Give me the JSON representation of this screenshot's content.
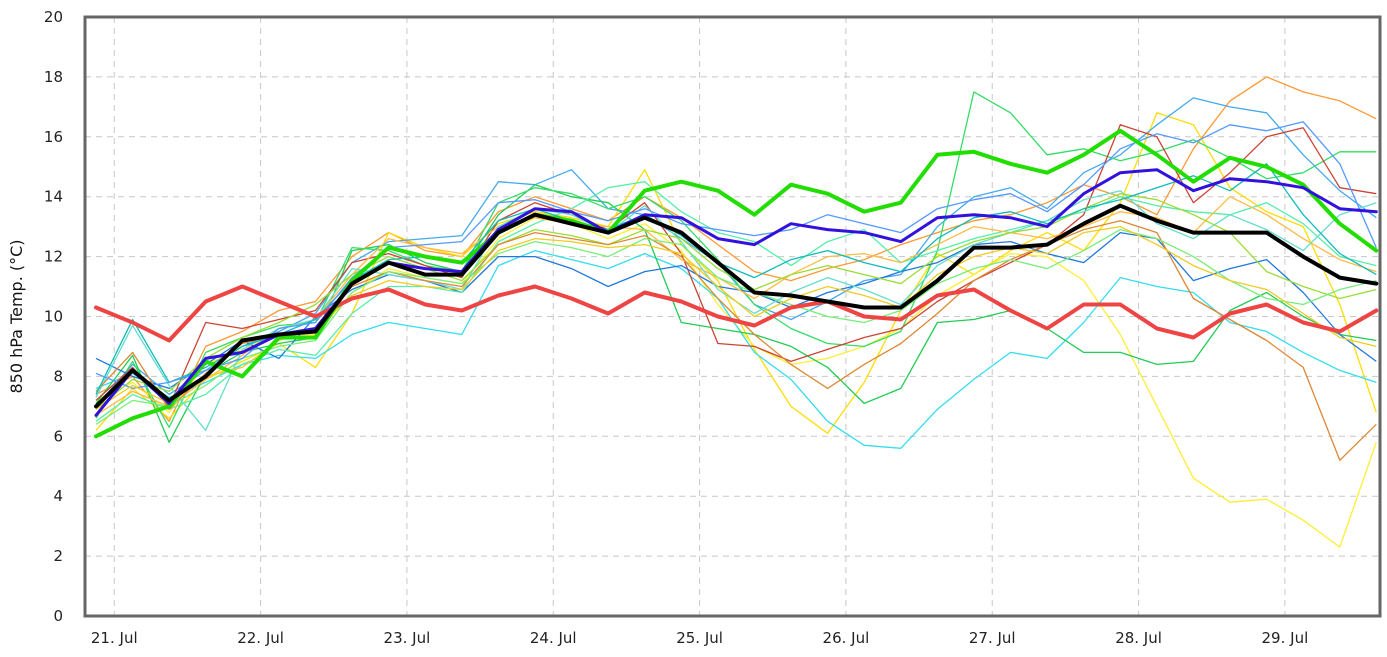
{
  "chart_data": {
    "type": "line",
    "ylabel": "850 hPa Temp. (°C)",
    "ylim": [
      0,
      20
    ],
    "yticks": [
      0,
      2,
      4,
      6,
      8,
      10,
      12,
      14,
      16,
      18,
      20
    ],
    "xlim_days": [
      20.8,
      29.65
    ],
    "xticks": [
      {
        "day": 21,
        "label": "21. Jul"
      },
      {
        "day": 22,
        "label": "22. Jul"
      },
      {
        "day": 23,
        "label": "23. Jul"
      },
      {
        "day": 24,
        "label": "24. Jul"
      },
      {
        "day": 25,
        "label": "25. Jul"
      },
      {
        "day": 26,
        "label": "26. Jul"
      },
      {
        "day": 27,
        "label": "27. Jul"
      },
      {
        "day": 28,
        "label": "28. Jul"
      },
      {
        "day": 29,
        "label": "29. Jul"
      }
    ],
    "grid": true,
    "legend": "none",
    "x": [
      20.875,
      21.125,
      21.375,
      21.625,
      21.875,
      22.125,
      22.375,
      22.625,
      22.875,
      23.125,
      23.375,
      23.625,
      23.875,
      24.125,
      24.375,
      24.625,
      24.875,
      25.125,
      25.375,
      25.625,
      25.875,
      26.125,
      26.375,
      26.625,
      26.875,
      27.125,
      27.375,
      27.625,
      27.875,
      28.125,
      28.375,
      28.625,
      28.875,
      29.125,
      29.375,
      29.625
    ],
    "main_series": [
      {
        "color": "#ee4444",
        "width": 4,
        "values": [
          10.3,
          9.8,
          9.2,
          10.5,
          11.0,
          10.5,
          10.0,
          10.6,
          10.9,
          10.4,
          10.2,
          10.7,
          11.0,
          10.6,
          10.1,
          10.8,
          10.5,
          10.0,
          9.7,
          10.3,
          10.5,
          10.0,
          9.9,
          10.7,
          10.9,
          10.2,
          9.6,
          10.4,
          10.4,
          9.6,
          9.3,
          10.1,
          10.4,
          9.8,
          9.5,
          10.2
        ]
      },
      {
        "color": "#22dd00",
        "width": 4,
        "values": [
          6.0,
          6.6,
          7.0,
          8.5,
          8.0,
          9.3,
          9.3,
          11.2,
          12.3,
          12.0,
          11.8,
          12.8,
          13.4,
          13.2,
          12.8,
          14.2,
          14.5,
          14.2,
          13.4,
          14.4,
          14.1,
          13.5,
          13.8,
          15.4,
          15.5,
          15.1,
          14.8,
          15.4,
          16.2,
          15.4,
          14.5,
          15.3,
          15.0,
          14.4,
          13.1,
          12.2
        ]
      },
      {
        "color": "#3311dd",
        "width": 3,
        "values": [
          6.7,
          8.2,
          7.1,
          8.6,
          8.8,
          9.4,
          9.6,
          11.1,
          11.8,
          11.6,
          11.5,
          12.9,
          13.6,
          13.5,
          12.8,
          13.4,
          13.3,
          12.6,
          12.4,
          13.1,
          12.9,
          12.8,
          12.5,
          13.3,
          13.4,
          13.3,
          13.0,
          14.1,
          14.8,
          14.9,
          14.2,
          14.6,
          14.5,
          14.3,
          13.6,
          13.5
        ]
      },
      {
        "color": "#000000",
        "width": 4,
        "values": [
          7.0,
          8.2,
          7.2,
          8.0,
          9.2,
          9.4,
          9.5,
          11.1,
          11.8,
          11.4,
          11.4,
          12.8,
          13.4,
          13.1,
          12.8,
          13.3,
          12.8,
          11.8,
          10.8,
          10.7,
          10.5,
          10.3,
          10.3,
          11.2,
          12.3,
          12.3,
          12.4,
          13.1,
          13.7,
          13.2,
          12.8,
          12.8,
          12.8,
          12.0,
          11.3,
          11.1
        ]
      }
    ],
    "members": [
      {
        "color": "#ff9933",
        "values": [
          7.4,
          8.0,
          6.5,
          9.0,
          9.5,
          10.2,
          10.5,
          12.0,
          12.8,
          12.2,
          12.0,
          13.5,
          14.0,
          13.6,
          13.2,
          14.0,
          13.3,
          12.4,
          11.5,
          11.2,
          11.6,
          11.9,
          12.4,
          12.8,
          13.2,
          13.4,
          13.8,
          14.4,
          14.0,
          13.4,
          15.6,
          17.2,
          18.0,
          17.5,
          17.2,
          16.6
        ]
      },
      {
        "color": "#ffdd00",
        "values": [
          6.2,
          7.6,
          6.6,
          7.9,
          8.5,
          9.1,
          8.3,
          10.1,
          12.8,
          12.3,
          12.0,
          13.1,
          13.5,
          13.3,
          13.0,
          14.9,
          12.4,
          11.2,
          8.9,
          7.0,
          6.1,
          7.8,
          10.2,
          12.1,
          11.4,
          12.2,
          12.8,
          12.2,
          13.8,
          16.8,
          16.4,
          14.3,
          13.5,
          13.0,
          10.4,
          6.8
        ]
      },
      {
        "color": "#ffee33",
        "values": [
          7.2,
          7.8,
          6.8,
          8.4,
          8.9,
          9.4,
          9.4,
          10.8,
          11.6,
          11.3,
          11.1,
          12.6,
          13.3,
          13.1,
          12.6,
          13.1,
          12.2,
          10.4,
          9.0,
          8.4,
          8.6,
          9.0,
          9.6,
          10.7,
          11.4,
          12.1,
          12.0,
          11.2,
          9.4,
          7.0,
          4.6,
          3.8,
          3.9,
          3.2,
          2.3,
          5.8
        ]
      },
      {
        "color": "#44aaee",
        "values": [
          7.0,
          8.4,
          7.4,
          8.2,
          9.0,
          9.5,
          10.1,
          11.8,
          12.5,
          12.6,
          12.7,
          14.5,
          14.4,
          14.9,
          13.6,
          13.4,
          12.6,
          11.8,
          10.4,
          9.9,
          10.5,
          11.2,
          11.4,
          13.0,
          14.0,
          14.3,
          13.6,
          14.8,
          15.4,
          16.4,
          17.3,
          17.0,
          16.8,
          15.4,
          14.2,
          13.3
        ]
      },
      {
        "color": "#33ddee",
        "values": [
          7.6,
          8.1,
          7.3,
          7.8,
          8.4,
          8.7,
          8.6,
          9.4,
          9.8,
          9.6,
          9.4,
          11.7,
          12.2,
          11.9,
          11.6,
          12.1,
          11.6,
          10.6,
          8.8,
          7.9,
          6.5,
          5.7,
          5.6,
          6.9,
          7.9,
          8.8,
          8.6,
          9.8,
          11.3,
          11.0,
          10.8,
          9.8,
          9.5,
          8.8,
          8.2,
          7.8
        ]
      },
      {
        "color": "#22cc55",
        "values": [
          7.1,
          8.7,
          5.8,
          8.1,
          8.8,
          9.1,
          9.3,
          12.2,
          12.4,
          11.8,
          11.5,
          13.4,
          14.4,
          14.0,
          13.8,
          12.9,
          9.8,
          9.6,
          9.4,
          9.0,
          8.3,
          7.1,
          7.6,
          9.8,
          9.9,
          10.2,
          9.6,
          8.8,
          8.8,
          8.4,
          8.5,
          10.2,
          10.8,
          10.0,
          9.4,
          9.2
        ]
      },
      {
        "color": "#33dd66",
        "values": [
          6.6,
          8.5,
          6.3,
          8.8,
          9.3,
          9.7,
          9.8,
          12.3,
          12.2,
          11.7,
          11.5,
          13.8,
          14.3,
          14.1,
          13.6,
          14.0,
          13.2,
          11.9,
          10.4,
          9.6,
          9.1,
          9.0,
          9.5,
          12.2,
          17.5,
          16.8,
          15.4,
          15.6,
          15.2,
          15.5,
          15.9,
          15.3,
          14.6,
          14.8,
          15.5,
          15.5
        ]
      },
      {
        "color": "#cc4433",
        "values": [
          7.2,
          8.3,
          7.0,
          9.8,
          9.6,
          9.9,
          10.2,
          11.8,
          12.1,
          11.7,
          11.3,
          13.2,
          13.8,
          13.4,
          12.9,
          13.8,
          12.1,
          9.1,
          9.0,
          8.5,
          8.9,
          9.3,
          9.6,
          10.5,
          11.2,
          11.8,
          12.4,
          13.4,
          16.4,
          16.0,
          13.8,
          14.8,
          16.0,
          16.3,
          14.3,
          14.1
        ]
      },
      {
        "color": "#2277dd",
        "values": [
          8.6,
          8.0,
          7.6,
          8.4,
          9.2,
          8.6,
          10.0,
          10.9,
          11.4,
          11.2,
          10.8,
          12.0,
          12.0,
          11.6,
          11.0,
          11.5,
          11.7,
          11.0,
          10.8,
          10.3,
          10.8,
          11.1,
          11.5,
          11.8,
          12.4,
          12.5,
          12.1,
          11.8,
          12.8,
          12.6,
          11.2,
          11.6,
          11.9,
          10.8,
          9.4,
          8.5
        ]
      },
      {
        "color": "#55eeaa",
        "values": [
          6.5,
          7.4,
          6.9,
          7.4,
          8.4,
          8.9,
          8.7,
          10.1,
          11.0,
          11.0,
          10.8,
          12.5,
          13.1,
          13.6,
          14.3,
          14.5,
          13.5,
          12.8,
          12.5,
          11.7,
          12.5,
          12.9,
          11.8,
          12.2,
          12.6,
          12.9,
          13.2,
          13.5,
          14.0,
          13.7,
          13.5,
          13.4,
          13.8,
          13.1,
          12.0,
          11.7
        ]
      },
      {
        "color": "#ffbb44",
        "values": [
          6.7,
          7.5,
          7.0,
          7.9,
          8.7,
          9.6,
          9.9,
          11.4,
          12.6,
          12.3,
          12.1,
          13.0,
          13.3,
          13.1,
          13.0,
          12.9,
          11.9,
          11.3,
          10.6,
          11.4,
          12.0,
          12.1,
          11.8,
          12.4,
          13.0,
          12.8,
          12.6,
          13.0,
          13.5,
          13.3,
          12.8,
          14.0,
          13.4,
          12.6,
          11.9,
          11.5
        ]
      },
      {
        "color": "#66ddcc",
        "values": [
          7.3,
          9.7,
          7.7,
          6.2,
          8.9,
          9.6,
          9.9,
          11.6,
          11.4,
          11.2,
          10.9,
          13.0,
          13.6,
          13.4,
          12.8,
          13.7,
          12.5,
          10.9,
          10.1,
          10.8,
          11.3,
          10.9,
          10.4,
          11.7,
          12.4,
          12.8,
          13.2,
          13.9,
          14.2,
          13.1,
          12.6,
          13.4,
          12.9,
          12.2,
          13.4,
          13.8
        ]
      },
      {
        "color": "#99dd33",
        "values": [
          6.9,
          7.9,
          7.5,
          8.6,
          9.3,
          9.8,
          10.4,
          11.4,
          12.0,
          11.6,
          11.2,
          12.4,
          12.9,
          12.7,
          12.4,
          12.9,
          12.6,
          11.6,
          10.9,
          11.4,
          11.7,
          11.4,
          11.1,
          12.0,
          12.5,
          12.8,
          13.0,
          13.6,
          14.1,
          13.9,
          13.4,
          12.8,
          11.5,
          11.0,
          10.6,
          10.9
        ]
      },
      {
        "color": "#dd8833",
        "values": [
          7.5,
          8.8,
          6.9,
          8.1,
          9.1,
          9.4,
          9.6,
          11.0,
          11.5,
          11.2,
          11.0,
          12.4,
          12.8,
          12.6,
          12.4,
          12.7,
          12.0,
          10.6,
          9.4,
          8.4,
          7.6,
          8.4,
          9.1,
          10.1,
          11.2,
          11.9,
          12.4,
          12.9,
          13.2,
          12.8,
          10.6,
          9.9,
          9.2,
          8.3,
          5.2,
          6.4
        ]
      },
      {
        "color": "#11bbbb",
        "values": [
          7.4,
          9.9,
          7.8,
          8.3,
          9.0,
          9.4,
          9.9,
          11.2,
          11.9,
          12.0,
          11.8,
          13.2,
          13.6,
          13.2,
          12.9,
          13.4,
          12.7,
          11.8,
          11.3,
          11.9,
          12.2,
          11.8,
          11.5,
          12.6,
          13.3,
          13.5,
          13.1,
          13.6,
          13.9,
          14.3,
          14.7,
          14.2,
          15.1,
          13.4,
          12.1,
          11.4
        ]
      },
      {
        "color": "#77ee77",
        "values": [
          6.4,
          7.2,
          7.0,
          7.7,
          8.6,
          9.0,
          9.2,
          10.8,
          11.5,
          11.3,
          11.1,
          12.1,
          12.5,
          12.3,
          12.0,
          12.6,
          12.4,
          11.3,
          10.8,
          10.4,
          10.0,
          9.8,
          10.2,
          11.1,
          11.6,
          11.9,
          11.6,
          12.2,
          12.9,
          12.6,
          12.0,
          11.2,
          10.6,
          10.4,
          10.9,
          11.2
        ]
      },
      {
        "color": "#5599ff",
        "values": [
          8.1,
          7.6,
          7.8,
          8.2,
          8.6,
          9.6,
          9.8,
          11.3,
          12.3,
          12.4,
          12.5,
          13.8,
          13.9,
          13.5,
          13.2,
          13.6,
          13.1,
          12.9,
          12.7,
          12.9,
          13.4,
          13.1,
          12.8,
          13.6,
          13.9,
          14.1,
          13.5,
          14.4,
          15.6,
          16.1,
          15.8,
          16.4,
          16.2,
          16.5,
          15.1,
          12.3
        ]
      },
      {
        "color": "#eecc22",
        "values": [
          6.9,
          7.7,
          7.1,
          8.0,
          8.3,
          9.2,
          9.6,
          10.7,
          11.2,
          11.0,
          10.9,
          12.2,
          12.6,
          12.5,
          12.3,
          12.4,
          12.1,
          11.0,
          10.0,
          10.6,
          11.0,
          10.7,
          10.3,
          11.4,
          12.0,
          12.3,
          12.1,
          12.8,
          13.0,
          12.4,
          11.7,
          11.2,
          10.9,
          10.1,
          9.3,
          9.0
        ]
      }
    ]
  }
}
